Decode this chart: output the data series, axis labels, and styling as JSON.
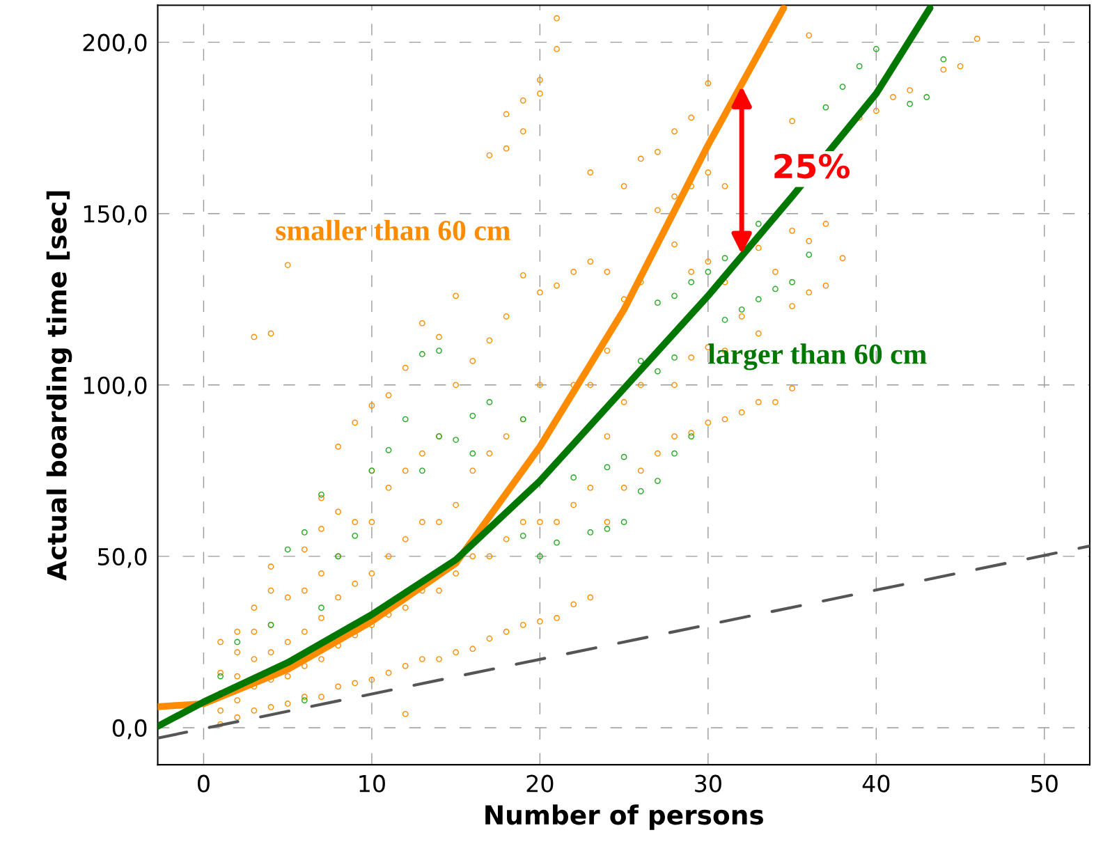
{
  "chart_data": {
    "type": "scatter",
    "xlabel": "Number of persons",
    "ylabel": "Actual boarding time [sec]",
    "xlim": [
      -2.73,
      52.7
    ],
    "ylim": [
      -10.8,
      210.8
    ],
    "xticks": [
      0,
      10,
      20,
      30,
      40,
      50
    ],
    "yticks": [
      {
        "value": 0,
        "label": "0,0"
      },
      {
        "value": 50,
        "label": "50,0"
      },
      {
        "value": 100,
        "label": "100,0"
      },
      {
        "value": 150,
        "label": "150,0"
      },
      {
        "value": 200,
        "label": "200,0"
      }
    ],
    "grid": true,
    "annotations": [
      {
        "text": "25%",
        "x": 32,
        "y": 188
      }
    ],
    "series": [
      {
        "marker": "circle",
        "color": "#ff8c00",
        "x": [
          1,
          1,
          1,
          1,
          1,
          2,
          2,
          2,
          2,
          2,
          3,
          3,
          3,
          3,
          3,
          3,
          4,
          4,
          4,
          4,
          4,
          4,
          4,
          5,
          5,
          5,
          5,
          5,
          6,
          6,
          6,
          6,
          6,
          7,
          7,
          7,
          7,
          7,
          7,
          8,
          8,
          8,
          8,
          8,
          8,
          9,
          9,
          9,
          9,
          9,
          10,
          10,
          10,
          10,
          10,
          10,
          11,
          11,
          11,
          11,
          11,
          12,
          12,
          12,
          12,
          12,
          12,
          13,
          13,
          13,
          13,
          13,
          14,
          14,
          14,
          14,
          14,
          15,
          15,
          15,
          15,
          15,
          16,
          16,
          16,
          16,
          17,
          17,
          17,
          17,
          17,
          18,
          18,
          18,
          18,
          18,
          18,
          19,
          19,
          19,
          19,
          19,
          19,
          20,
          20,
          20,
          20,
          20,
          20,
          21,
          21,
          21,
          21,
          21,
          22,
          22,
          22,
          22,
          23,
          23,
          23,
          23,
          23,
          24,
          24,
          24,
          24,
          25,
          25,
          25,
          25,
          26,
          26,
          26,
          26,
          27,
          27,
          27,
          28,
          28,
          28,
          28,
          28,
          29,
          29,
          29,
          29,
          29,
          30,
          30,
          30,
          30,
          30,
          31,
          31,
          31,
          31,
          32,
          32,
          33,
          33,
          33,
          34,
          34,
          35,
          35,
          35,
          35,
          36,
          36,
          36,
          37,
          37,
          38,
          39,
          40,
          41,
          42,
          44,
          45,
          46
        ],
        "values": [
          1,
          5,
          10,
          16,
          25,
          3,
          8,
          15,
          22,
          28,
          5,
          12,
          20,
          28,
          35,
          114,
          6,
          14,
          22,
          30,
          40,
          47,
          115,
          7,
          15,
          25,
          38,
          135,
          9,
          18,
          28,
          40,
          52,
          9,
          20,
          32,
          45,
          58,
          67,
          12,
          24,
          38,
          50,
          63,
          82,
          13,
          27,
          42,
          60,
          89,
          14,
          30,
          45,
          60,
          75,
          94,
          16,
          33,
          50,
          70,
          97,
          4,
          18,
          35,
          55,
          75,
          105,
          20,
          40,
          60,
          80,
          118,
          20,
          40,
          60,
          85,
          114,
          22,
          45,
          65,
          100,
          126,
          23,
          50,
          75,
          107,
          26,
          50,
          80,
          113,
          167,
          28,
          55,
          85,
          120,
          169,
          179,
          30,
          60,
          90,
          132,
          174,
          183,
          31,
          60,
          100,
          127,
          185,
          189,
          32,
          60,
          129,
          198,
          207,
          36,
          65,
          100,
          133,
          38,
          70,
          100,
          136,
          162,
          60,
          85,
          110,
          133,
          70,
          95,
          125,
          158,
          75,
          100,
          130,
          166,
          80,
          151,
          168,
          85,
          100,
          141,
          155,
          174,
          86,
          108,
          133,
          158,
          178,
          89,
          111,
          136,
          162,
          188,
          90,
          110,
          130,
          158,
          92,
          120,
          95,
          115,
          140,
          95,
          133,
          99,
          123,
          145,
          177,
          127,
          142,
          202,
          129,
          147,
          137,
          178,
          180,
          184,
          186,
          192,
          193,
          201
        ]
      },
      {
        "marker": "circle",
        "color": "#22aa22",
        "x": [
          1,
          2,
          4,
          5,
          6,
          6,
          7,
          7,
          8,
          9,
          10,
          11,
          12,
          13,
          13,
          14,
          14,
          15,
          16,
          16,
          17,
          19,
          19,
          20,
          21,
          22,
          23,
          24,
          24,
          25,
          25,
          26,
          26,
          27,
          27,
          27,
          28,
          28,
          28,
          29,
          29,
          30,
          31,
          31,
          32,
          33,
          33,
          34,
          35,
          36,
          37,
          38,
          39,
          40,
          42,
          43,
          44
        ],
        "values": [
          15,
          25,
          30,
          52,
          8,
          57,
          68,
          35,
          50,
          56,
          75,
          81,
          90,
          75,
          109,
          110,
          85,
          84,
          91,
          80,
          95,
          90,
          56,
          50,
          54,
          73,
          57,
          58,
          76,
          60,
          79,
          69,
          107,
          72,
          104,
          124,
          80,
          108,
          126,
          85,
          130,
          133,
          119,
          137,
          122,
          125,
          147,
          128,
          130,
          138,
          181,
          187,
          193,
          198,
          182,
          184,
          195
        ]
      },
      {
        "type": "line",
        "name": "smaller than 60 cm",
        "color": "#ff8c00",
        "marker": "none",
        "x": [
          -2.73,
          0,
          5,
          10,
          15,
          20,
          25,
          30,
          34.5
        ],
        "values": [
          6.1,
          7,
          17,
          31,
          48,
          82,
          122,
          170,
          210
        ]
      },
      {
        "type": "line",
        "name": "larger than 60 cm",
        "color": "#007700",
        "marker": "none",
        "x": [
          -2.73,
          0,
          5,
          10,
          15,
          20,
          25,
          30,
          35,
          40,
          43.2
        ],
        "values": [
          0.4,
          7.5,
          19,
          33,
          49,
          72,
          99,
          126,
          155,
          185,
          210
        ]
      },
      {
        "type": "line",
        "color": "#555555",
        "marker": "none",
        "line_style": "dashed",
        "x": [
          -2.7,
          52.7
        ],
        "values": [
          -3,
          53
        ]
      }
    ]
  }
}
